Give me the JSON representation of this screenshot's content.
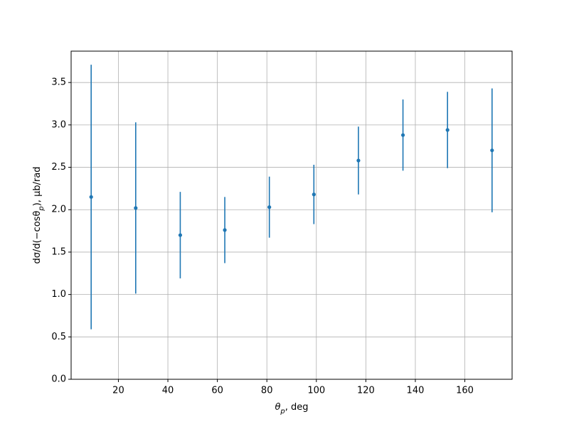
{
  "chart_data": {
    "type": "errorbar",
    "x_label": [
      "θ",
      "p",
      ", deg"
    ],
    "y_label": [
      "dσ/d(−cosθ",
      "p",
      "), μb/rad"
    ],
    "series": [
      {
        "color": "#1f77b4",
        "x": [
          9,
          27,
          45,
          63,
          81,
          99,
          117,
          135,
          153,
          171
        ],
        "values": [
          2.15,
          2.02,
          1.7,
          1.76,
          2.03,
          2.18,
          2.58,
          2.88,
          2.94,
          2.7
        ],
        "errors": [
          1.56,
          1.01,
          0.51,
          0.39,
          0.36,
          0.35,
          0.4,
          0.42,
          0.45,
          0.73
        ]
      }
    ],
    "xlim": [
      0.9,
      179.1
    ],
    "ylim": [
      0,
      3.87
    ],
    "xticks": [
      20,
      40,
      60,
      80,
      100,
      120,
      140,
      160
    ],
    "yticks": [
      {
        "value": 0,
        "label": "0.0"
      },
      0.5,
      {
        "value": 1,
        "label": "1.0"
      },
      1.5,
      {
        "value": 2,
        "label": "2.0"
      },
      2.5,
      {
        "value": 3,
        "label": "3.0"
      },
      3.5
    ],
    "grid": true
  }
}
